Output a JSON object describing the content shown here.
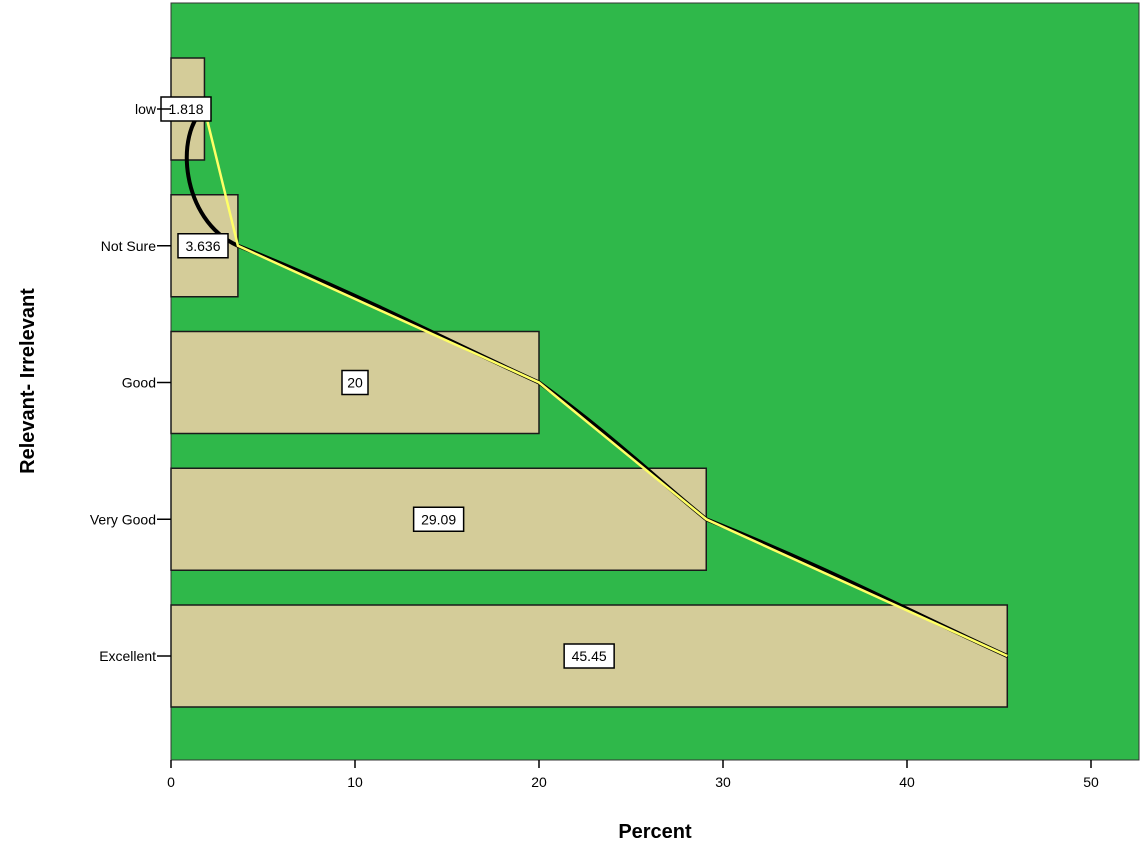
{
  "chart_data": {
    "type": "bar",
    "orientation": "horizontal",
    "xlabel": "Percent",
    "ylabel": "Relevant- Irrelevant",
    "xlim": [
      0,
      52.5
    ],
    "xticks": [
      0,
      10,
      20,
      30,
      40,
      50
    ],
    "categories": [
      "low",
      "Not Sure",
      "Good",
      "Very Good",
      "Excellent"
    ],
    "values": [
      1.818,
      3.636,
      20,
      29.09,
      45.45
    ],
    "data_labels": [
      "1.818",
      "3.636",
      "20",
      "29.09",
      "45.45"
    ],
    "grid": false,
    "overlays": [
      "smooth curve (black)",
      "connecting line (yellow)"
    ],
    "colors": {
      "plot_background": "#2fb84a",
      "bar_fill": "#d4cc99",
      "bar_stroke": "#1a1a1a",
      "smooth_line": "#000000",
      "straight_line": "#ffff66",
      "label_box": "#ffffff"
    }
  }
}
